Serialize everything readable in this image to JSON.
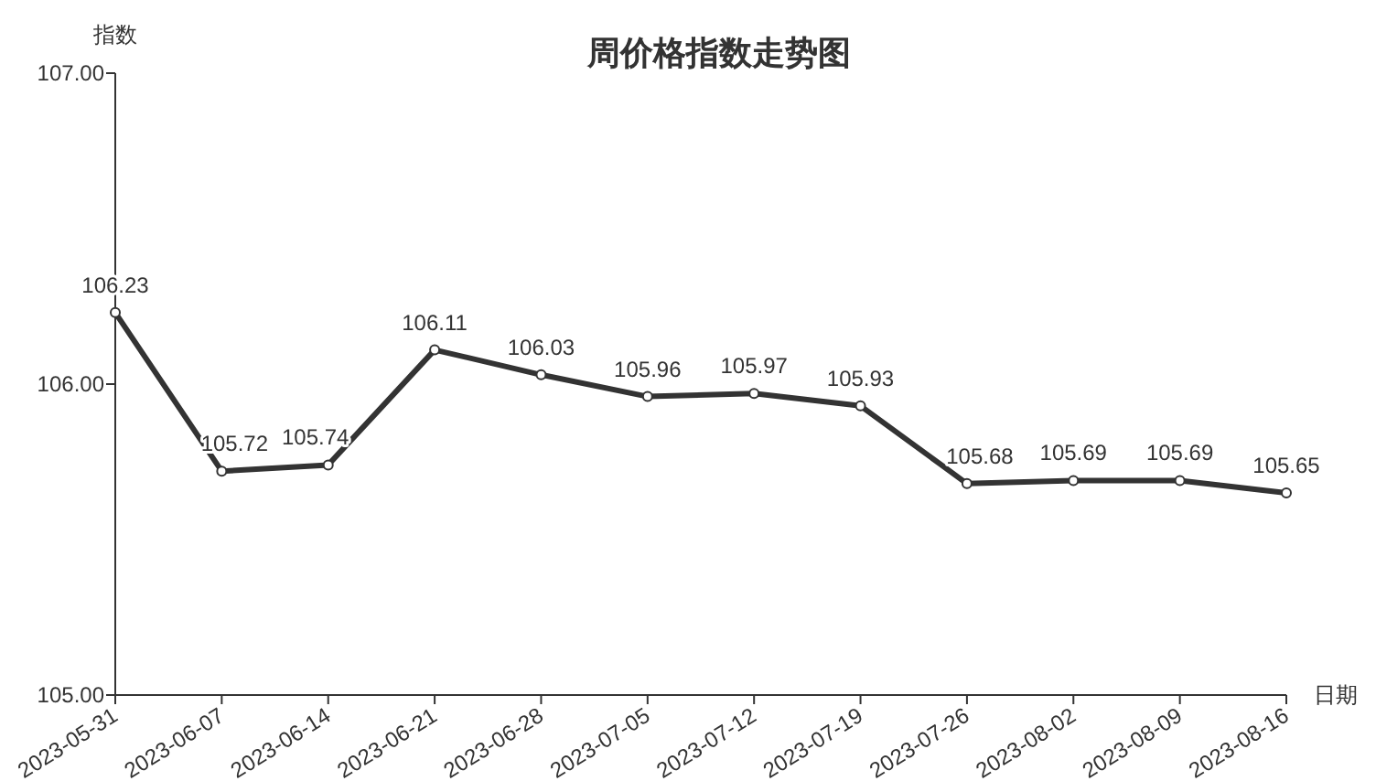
{
  "chart_data": {
    "type": "line",
    "title": "周价格指数走势图",
    "xlabel": "日期",
    "ylabel": "指数",
    "categories": [
      "2023-05-31",
      "2023-06-07",
      "2023-06-14",
      "2023-06-21",
      "2023-06-28",
      "2023-07-05",
      "2023-07-12",
      "2023-07-19",
      "2023-07-26",
      "2023-08-02",
      "2023-08-09",
      "2023-08-16"
    ],
    "series": [
      {
        "color": "#333333",
        "values": [
          106.23,
          105.72,
          105.74,
          106.11,
          106.03,
          105.96,
          105.97,
          105.93,
          105.68,
          105.69,
          105.69,
          105.65
        ]
      }
    ],
    "ylim": [
      105,
      107
    ],
    "yticks": [
      {
        "value": 105,
        "label": "105.00"
      },
      {
        "value": 106,
        "label": "106.00"
      },
      {
        "value": 107,
        "label": "107.00"
      }
    ],
    "data_labels": true,
    "marker": "circle",
    "line_style": "solid"
  }
}
